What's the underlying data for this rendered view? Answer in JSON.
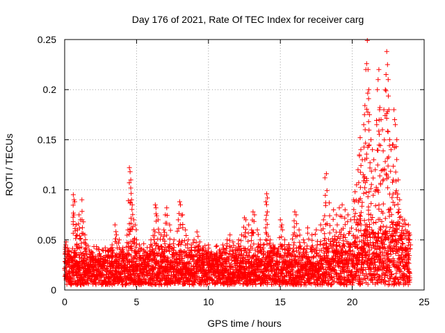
{
  "chart_data": {
    "type": "scatter",
    "title": "Day 176 of 2021, Rate Of TEC Index for receiver carg",
    "xlabel": "GPS time / hours",
    "ylabel": "ROTI / TECUs",
    "xlim": [
      0,
      25
    ],
    "ylim": [
      0,
      0.25
    ],
    "xticks": [
      0,
      5,
      10,
      15,
      20,
      25
    ],
    "xtick_labels": [
      "0",
      "5",
      "10",
      "15",
      "20",
      "25"
    ],
    "yticks": [
      0,
      0.05,
      0.1,
      0.15,
      0.2,
      0.25
    ],
    "ytick_labels": [
      "0",
      "0.05",
      "0.1",
      "0.15",
      "0.2",
      "0.25"
    ],
    "grid": true,
    "marker": "+",
    "marker_color": "#ff0000",
    "series": [
      {
        "name": "ROTI",
        "points": [
          [
            0.1,
            0.048
          ],
          [
            0.2,
            0.042
          ],
          [
            0.3,
            0.035
          ],
          [
            0.5,
            0.03
          ],
          [
            0.6,
            0.095
          ],
          [
            0.65,
            0.09
          ],
          [
            0.7,
            0.088
          ],
          [
            0.8,
            0.065
          ],
          [
            0.9,
            0.06
          ],
          [
            1.0,
            0.075
          ],
          [
            1.1,
            0.07
          ],
          [
            1.2,
            0.09
          ],
          [
            1.3,
            0.068
          ],
          [
            1.4,
            0.055
          ],
          [
            1.5,
            0.045
          ],
          [
            1.7,
            0.04
          ],
          [
            1.9,
            0.033
          ],
          [
            2.1,
            0.03
          ],
          [
            2.4,
            0.028
          ],
          [
            2.7,
            0.026
          ],
          [
            3.0,
            0.04
          ],
          [
            3.3,
            0.045
          ],
          [
            3.5,
            0.065
          ],
          [
            3.6,
            0.055
          ],
          [
            3.8,
            0.05
          ],
          [
            4.0,
            0.04
          ],
          [
            4.2,
            0.035
          ],
          [
            4.4,
            0.06
          ],
          [
            4.5,
            0.122
          ],
          [
            4.55,
            0.118
          ],
          [
            4.6,
            0.11
          ],
          [
            4.65,
            0.09
          ],
          [
            4.7,
            0.085
          ],
          [
            4.8,
            0.07
          ],
          [
            4.9,
            0.065
          ],
          [
            5.0,
            0.05
          ],
          [
            5.2,
            0.045
          ],
          [
            5.5,
            0.04
          ],
          [
            5.8,
            0.035
          ],
          [
            6.0,
            0.05
          ],
          [
            6.2,
            0.06
          ],
          [
            6.3,
            0.085
          ],
          [
            6.35,
            0.082
          ],
          [
            6.5,
            0.07
          ],
          [
            6.7,
            0.055
          ],
          [
            6.9,
            0.06
          ],
          [
            7.0,
            0.075
          ],
          [
            7.1,
            0.082
          ],
          [
            7.3,
            0.065
          ],
          [
            7.6,
            0.05
          ],
          [
            7.9,
            0.07
          ],
          [
            8.0,
            0.088
          ],
          [
            8.05,
            0.085
          ],
          [
            8.2,
            0.075
          ],
          [
            8.4,
            0.06
          ],
          [
            8.6,
            0.05
          ],
          [
            8.8,
            0.045
          ],
          [
            9.0,
            0.05
          ],
          [
            9.2,
            0.058
          ],
          [
            9.4,
            0.048
          ],
          [
            9.6,
            0.042
          ],
          [
            9.8,
            0.04
          ],
          [
            10.0,
            0.045
          ],
          [
            10.2,
            0.038
          ],
          [
            10.5,
            0.035
          ],
          [
            10.8,
            0.04
          ],
          [
            11.0,
            0.045
          ],
          [
            11.3,
            0.05
          ],
          [
            11.5,
            0.055
          ],
          [
            11.7,
            0.048
          ],
          [
            11.9,
            0.042
          ],
          [
            12.1,
            0.05
          ],
          [
            12.3,
            0.055
          ],
          [
            12.5,
            0.072
          ],
          [
            12.6,
            0.07
          ],
          [
            12.8,
            0.065
          ],
          [
            13.0,
            0.06
          ],
          [
            13.1,
            0.078
          ],
          [
            13.2,
            0.075
          ],
          [
            13.4,
            0.06
          ],
          [
            13.6,
            0.05
          ],
          [
            13.8,
            0.045
          ],
          [
            14.0,
            0.088
          ],
          [
            14.05,
            0.096
          ],
          [
            14.1,
            0.092
          ],
          [
            14.3,
            0.05
          ],
          [
            14.5,
            0.045
          ],
          [
            14.8,
            0.04
          ],
          [
            15.0,
            0.07
          ],
          [
            15.1,
            0.065
          ],
          [
            15.3,
            0.05
          ],
          [
            15.6,
            0.045
          ],
          [
            15.9,
            0.055
          ],
          [
            16.0,
            0.078
          ],
          [
            16.1,
            0.075
          ],
          [
            16.3,
            0.06
          ],
          [
            16.6,
            0.05
          ],
          [
            16.9,
            0.062
          ],
          [
            17.2,
            0.055
          ],
          [
            17.5,
            0.06
          ],
          [
            17.8,
            0.065
          ],
          [
            18.0,
            0.07
          ],
          [
            18.1,
            0.112
          ],
          [
            18.2,
            0.116
          ],
          [
            18.4,
            0.087
          ],
          [
            18.7,
            0.08
          ],
          [
            18.9,
            0.075
          ],
          [
            19.1,
            0.082
          ],
          [
            19.3,
            0.085
          ],
          [
            19.5,
            0.08
          ],
          [
            19.7,
            0.075
          ],
          [
            19.9,
            0.07
          ],
          [
            20.1,
            0.09
          ],
          [
            20.2,
            0.098
          ],
          [
            20.3,
            0.105
          ],
          [
            20.4,
            0.12
          ],
          [
            20.5,
            0.135
          ],
          [
            20.55,
            0.152
          ],
          [
            20.6,
            0.14
          ],
          [
            20.7,
            0.13
          ],
          [
            20.8,
            0.165
          ],
          [
            20.85,
            0.175
          ],
          [
            20.9,
            0.16
          ],
          [
            20.95,
            0.22
          ],
          [
            21.0,
            0.226
          ],
          [
            21.05,
            0.249
          ],
          [
            21.1,
            0.22
          ],
          [
            21.15,
            0.2
          ],
          [
            21.2,
            0.175
          ],
          [
            21.3,
            0.15
          ],
          [
            21.4,
            0.14
          ],
          [
            21.5,
            0.13
          ],
          [
            21.6,
            0.12
          ],
          [
            21.7,
            0.165
          ],
          [
            21.75,
            0.2
          ],
          [
            21.8,
            0.21
          ],
          [
            21.85,
            0.22
          ],
          [
            21.9,
            0.18
          ],
          [
            22.0,
            0.17
          ],
          [
            22.1,
            0.16
          ],
          [
            22.2,
            0.18
          ],
          [
            22.3,
            0.2
          ],
          [
            22.35,
            0.215
          ],
          [
            22.4,
            0.238
          ],
          [
            22.45,
            0.225
          ],
          [
            22.5,
            0.21
          ],
          [
            22.55,
            0.18
          ],
          [
            22.6,
            0.15
          ],
          [
            22.7,
            0.14
          ],
          [
            22.8,
            0.145
          ],
          [
            22.9,
            0.18
          ],
          [
            22.95,
            0.17
          ],
          [
            23.0,
            0.165
          ],
          [
            23.1,
            0.15
          ],
          [
            23.2,
            0.11
          ],
          [
            23.3,
            0.09
          ],
          [
            23.5,
            0.07
          ],
          [
            23.7,
            0.06
          ],
          [
            23.9,
            0.065
          ],
          [
            24.0,
            0.055
          ]
        ],
        "baseline_band": [
          0.0,
          0.035
        ],
        "baseline_step_hours": 0.02
      }
    ]
  }
}
